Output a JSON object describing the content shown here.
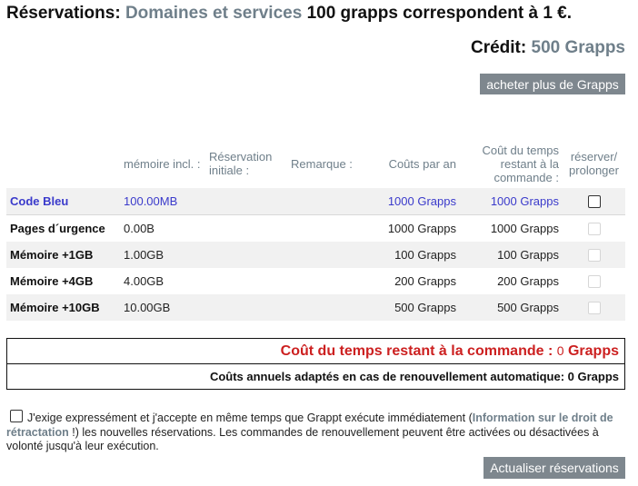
{
  "header": {
    "title_prefix": "Réservations:",
    "title_gray": "Domaines et services",
    "title_suffix": "100 grapps correspondent à 1 €."
  },
  "credit": {
    "label": "Crédit:",
    "value": "500 Grapps"
  },
  "buttons": {
    "buy": "acheter plus de Grapps",
    "update": "Actualiser réservations"
  },
  "table": {
    "headers": {
      "memory": "mémoire incl. :",
      "initial": "Réservation initiale :",
      "remark": "Remarque :",
      "cost_year": "Coûts par an",
      "cost_remaining": "Coût du temps restant à la commande :",
      "reserve": "réserver/ prolonger"
    },
    "rows": [
      {
        "name": "Code Bleu",
        "memory": "100.00MB",
        "initial": "",
        "remark": "",
        "cost_year": "1000 Grapps",
        "cost_remaining": "1000 Grapps",
        "checkbox_enabled": true
      },
      {
        "name": "Pages d´urgence",
        "memory": "0.00B",
        "initial": "",
        "remark": "",
        "cost_year": "1000 Grapps",
        "cost_remaining": "1000 Grapps",
        "checkbox_enabled": false
      },
      {
        "name": "Mémoire +1GB",
        "memory": "1.00GB",
        "initial": "",
        "remark": "",
        "cost_year": "100 Grapps",
        "cost_remaining": "100 Grapps",
        "checkbox_enabled": false
      },
      {
        "name": "Mémoire +4GB",
        "memory": "4.00GB",
        "initial": "",
        "remark": "",
        "cost_year": "200 Grapps",
        "cost_remaining": "200 Grapps",
        "checkbox_enabled": false
      },
      {
        "name": "Mémoire +10GB",
        "memory": "10.00GB",
        "initial": "",
        "remark": "",
        "cost_year": "500 Grapps",
        "cost_remaining": "500 Grapps",
        "checkbox_enabled": false
      }
    ]
  },
  "summary": {
    "remaining_label": "Coût du temps restant à la commande :",
    "remaining_value": "0",
    "remaining_unit": "Grapps",
    "annual": "Coûts annuels adaptés en cas de renouvellement automatique: 0 Grapps"
  },
  "consent": {
    "text_before": "J'exige expressément et j'accepte en même temps que Grappt exécute immédiatement (",
    "link": "Information sur le droit de rétractation",
    "text_after": " !) les nouvelles réservations. Les commandes de renouvellement peuvent être activées ou désactivées à volonté jusqu'à leur exécution."
  },
  "colors": {
    "accent_gray": "#6f7f8a",
    "button_gray": "#7e878e",
    "alert_red": "#cc2020",
    "selected_blue": "#3a3acb"
  }
}
